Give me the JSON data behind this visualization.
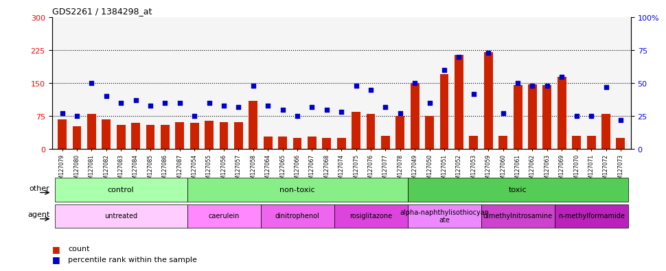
{
  "title": "GDS2261 / 1384298_at",
  "samples": [
    "GSM127079",
    "GSM127080",
    "GSM127081",
    "GSM127082",
    "GSM127083",
    "GSM127084",
    "GSM127085",
    "GSM127086",
    "GSM127087",
    "GSM127054",
    "GSM127055",
    "GSM127056",
    "GSM127057",
    "GSM127058",
    "GSM127064",
    "GSM127065",
    "GSM127066",
    "GSM127067",
    "GSM127068",
    "GSM127074",
    "GSM127075",
    "GSM127076",
    "GSM127077",
    "GSM127078",
    "GSM127049",
    "GSM127050",
    "GSM127051",
    "GSM127052",
    "GSM127053",
    "GSM127059",
    "GSM127060",
    "GSM127061",
    "GSM127062",
    "GSM127063",
    "GSM127069",
    "GSM127070",
    "GSM127071",
    "GSM127072",
    "GSM127073"
  ],
  "bar_values": [
    68,
    52,
    80,
    68,
    55,
    60,
    55,
    55,
    62,
    60,
    65,
    62,
    62,
    110,
    28,
    28,
    25,
    28,
    25,
    25,
    85,
    80,
    30,
    75,
    150,
    75,
    170,
    215,
    30,
    220,
    30,
    145,
    148,
    145,
    165,
    30,
    30,
    80,
    25
  ],
  "percentile_values": [
    27,
    25,
    50,
    40,
    35,
    37,
    33,
    35,
    35,
    25,
    35,
    33,
    32,
    48,
    33,
    30,
    25,
    32,
    30,
    28,
    48,
    45,
    32,
    27,
    50,
    35,
    60,
    70,
    42,
    73,
    27,
    50,
    48,
    48,
    55,
    25,
    25,
    47,
    22
  ],
  "bar_color": "#cc2200",
  "dot_color": "#0000cc",
  "left_ylim": [
    0,
    300
  ],
  "right_ylim": [
    0,
    100
  ],
  "left_yticks": [
    0,
    75,
    150,
    225,
    300
  ],
  "right_yticks": [
    0,
    25,
    50,
    75,
    100
  ],
  "right_yticklabels": [
    "0",
    "25",
    "50",
    "75",
    "100%"
  ],
  "hlines": [
    75,
    150,
    225
  ],
  "groups_other": [
    {
      "label": "control",
      "start": 0,
      "end": 9,
      "color": "#aaffaa"
    },
    {
      "label": "non-toxic",
      "start": 9,
      "end": 24,
      "color": "#88ee88"
    },
    {
      "label": "toxic",
      "start": 24,
      "end": 39,
      "color": "#55cc55"
    }
  ],
  "groups_agent": [
    {
      "label": "untreated",
      "start": 0,
      "end": 9,
      "color": "#ffccff"
    },
    {
      "label": "caerulein",
      "start": 9,
      "end": 14,
      "color": "#ff88ff"
    },
    {
      "label": "dinitrophenol",
      "start": 14,
      "end": 19,
      "color": "#ee66ee"
    },
    {
      "label": "rosiglitazone",
      "start": 19,
      "end": 24,
      "color": "#dd44dd"
    },
    {
      "label": "alpha-naphthylisothiocyanate",
      "start": 24,
      "end": 29,
      "color": "#ee88ff"
    },
    {
      "label": "dimethylnitrosamine",
      "start": 29,
      "end": 34,
      "color": "#cc44cc"
    },
    {
      "label": "n-methylformamide",
      "start": 34,
      "end": 39,
      "color": "#bb22bb"
    }
  ],
  "legend_count_color": "#cc2200",
  "legend_dot_color": "#0000cc",
  "bg_color": "#ffffff",
  "plot_bg_color": "#f5f5f5",
  "other_label": "other",
  "agent_label": "agent"
}
